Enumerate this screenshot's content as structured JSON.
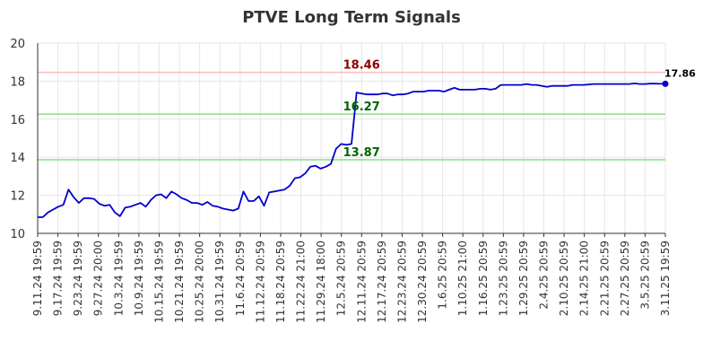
{
  "chart_data": {
    "type": "line",
    "title": "PTVE Long Term Signals",
    "xlabel": "",
    "ylabel": "",
    "ylim": [
      10,
      20
    ],
    "yticks": [
      10,
      12,
      14,
      16,
      18,
      20
    ],
    "grid": true,
    "legend": "none",
    "x_tick_labels": [
      "9.11.24 19:59",
      "9.17.24 19:59",
      "9.23.24 19:59",
      "9.27.24 20:00",
      "10.3.24 19:59",
      "10.9.24 19:59",
      "10.15.24 19:59",
      "10.21.24 19:59",
      "10.25.24 20:00",
      "10.31.24 19:59",
      "11.6.24 20:59",
      "11.12.24 20:59",
      "11.18.24 20:59",
      "11.22.24 21:00",
      "11.29.24 18:00",
      "12.5.24 20:59",
      "12.11.24 20:59",
      "12.17.24 20:59",
      "12.23.24 20:59",
      "12.30.24 20:59",
      "1.6.25 20:59",
      "1.10.25 21:00",
      "1.16.25 20:59",
      "1.23.25 20:59",
      "1.29.25 20:59",
      "2.4.25 20:59",
      "2.10.25 20:59",
      "2.14.25 21:00",
      "2.21.25 20:59",
      "2.27.25 20:59",
      "3.5.25 20:59",
      "3.11.25 19:59"
    ],
    "series": [
      {
        "values": [
          10.85,
          10.85,
          11.1,
          11.25,
          11.4,
          11.5,
          12.3,
          11.9,
          11.6,
          11.85,
          11.85,
          11.8,
          11.55,
          11.45,
          11.5,
          11.1,
          10.9,
          11.35,
          11.4,
          11.5,
          11.6,
          11.4,
          11.75,
          12.0,
          12.05,
          11.85,
          12.2,
          12.05,
          11.85,
          11.75,
          11.6,
          11.6,
          11.5,
          11.65,
          11.45,
          11.4,
          11.3,
          11.25,
          11.2,
          11.3,
          12.2,
          11.7,
          11.7,
          11.95,
          11.45,
          12.15,
          12.2,
          12.25,
          12.3,
          12.5,
          12.9,
          12.95,
          13.15,
          13.5,
          13.55,
          13.4,
          13.5,
          13.65,
          14.45,
          14.7,
          14.65,
          14.7,
          17.4,
          17.35,
          17.3,
          17.3,
          17.3,
          17.35,
          17.35,
          17.25,
          17.3,
          17.3,
          17.35,
          17.45,
          17.45,
          17.45,
          17.5,
          17.5,
          17.5,
          17.45,
          17.55,
          17.65,
          17.55,
          17.55,
          17.55,
          17.55,
          17.6,
          17.6,
          17.55,
          17.6,
          17.8,
          17.8,
          17.8,
          17.8,
          17.8,
          17.85,
          17.8,
          17.8,
          17.75,
          17.7,
          17.75,
          17.75,
          17.75,
          17.75,
          17.8,
          17.8,
          17.8,
          17.82,
          17.85,
          17.85,
          17.85,
          17.85,
          17.85,
          17.85,
          17.85,
          17.85,
          17.88,
          17.85,
          17.85,
          17.87,
          17.87,
          17.86,
          17.86
        ]
      }
    ],
    "series_color": "#0000cc",
    "reference_lines": [
      {
        "value": 18.46,
        "label": "18.46",
        "line_color": "#ffbbbb",
        "label_color": "#8b0000"
      },
      {
        "value": 16.27,
        "label": "16.27",
        "line_color": "#88dd88",
        "label_color": "#006400"
      },
      {
        "value": 13.87,
        "label": "13.87",
        "line_color": "#88dd88",
        "label_color": "#006400"
      }
    ],
    "last_value_label": "17.86"
  }
}
